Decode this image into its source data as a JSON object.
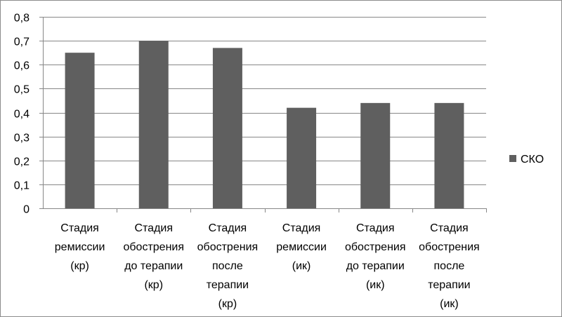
{
  "chart_data": {
    "type": "bar",
    "categories": [
      [
        "Стадия",
        "ремиссии",
        "(кр)"
      ],
      [
        "Стадия",
        "обострения",
        "до терапии",
        "(кр)"
      ],
      [
        "Стадия",
        "обострения",
        "после",
        "терапии",
        "(кр)"
      ],
      [
        "Стадия",
        "ремиссии",
        "(ик)"
      ],
      [
        "Стадия",
        "обострения",
        "до терапии",
        "(ик)"
      ],
      [
        "Стадия",
        "обострения",
        "после",
        "терапии",
        "(ик)"
      ]
    ],
    "series": [
      {
        "name": "СКО",
        "values": [
          0.65,
          0.7,
          0.67,
          0.42,
          0.44,
          0.44
        ]
      }
    ],
    "ylim": [
      0,
      0.8
    ],
    "yticks": [
      0,
      0.1,
      0.2,
      0.3,
      0.4,
      0.5,
      0.6,
      0.7,
      0.8
    ],
    "ytick_labels": [
      "0",
      "0,1",
      "0,2",
      "0,3",
      "0,4",
      "0,5",
      "0,6",
      "0,7",
      "0,8"
    ],
    "grid": true,
    "legend_position": "right",
    "bar_color": "#5f5f5f",
    "grid_color": "#878787",
    "axis_color": "#878787"
  }
}
